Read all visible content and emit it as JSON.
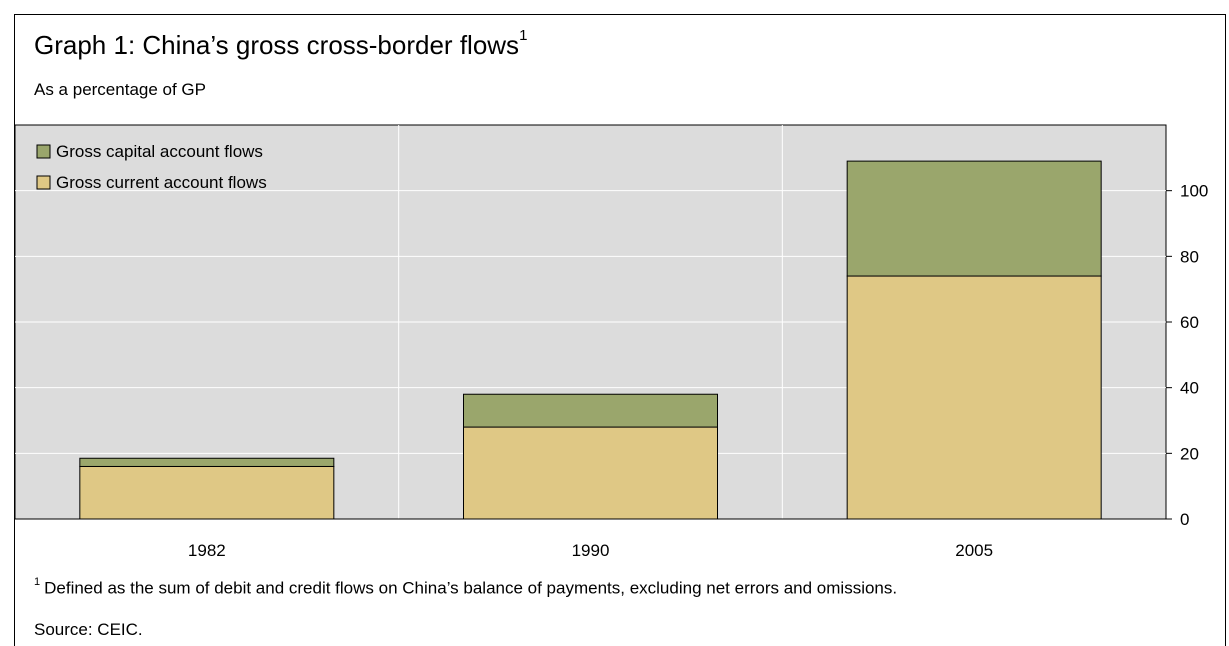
{
  "title": "Graph 1: China’s gross cross-border flows",
  "title_sup": "1",
  "subtitle": "As a percentage of GP",
  "footnote_marker": "1",
  "footnote": "Defined as the sum of debit and credit flows on China’s balance of payments, excluding net errors and omissions.",
  "source": "Source: CEIC.",
  "colors": {
    "capital": "#9aa66c",
    "current": "#dfc885",
    "plot_bg": "#dcdcdc",
    "grid": "#ffffff"
  },
  "chart_data": {
    "type": "bar",
    "stacked": true,
    "categories": [
      "1982",
      "1990",
      "2005"
    ],
    "series": [
      {
        "name": "Gross current account flows",
        "values": [
          16,
          28,
          74
        ]
      },
      {
        "name": "Gross capital account flows",
        "values": [
          2.5,
          10,
          35
        ]
      }
    ],
    "legend": [
      "Gross capital account flows",
      "Gross current account flows"
    ],
    "legend_position": "top-left",
    "y_ticks": [
      0,
      20,
      40,
      60,
      80,
      100
    ],
    "y_axis_side": "right",
    "ylim": [
      0,
      120
    ],
    "grid": true
  }
}
